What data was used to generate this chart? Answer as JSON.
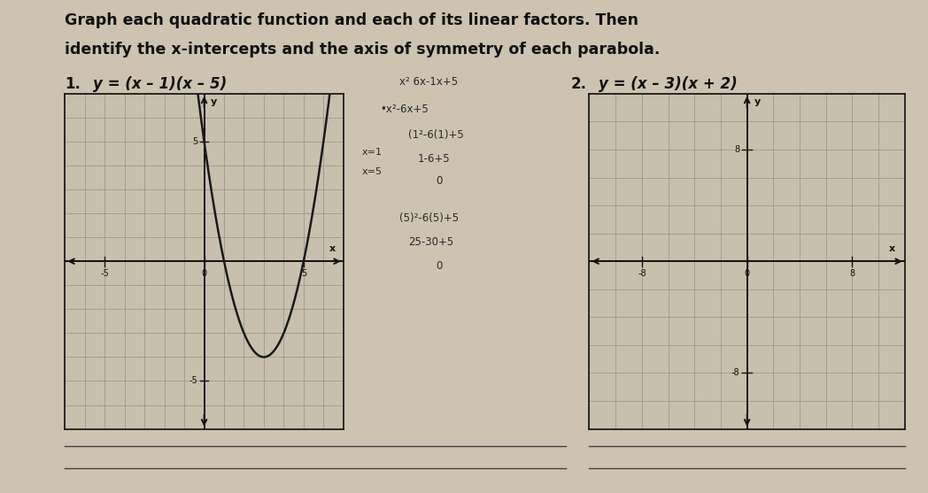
{
  "bg_color": "#cdc3b0",
  "graph1_bg": "#c8bfad",
  "graph2_bg": "#c8bfad",
  "title_line1": "Graph each quadratic function and each of its linear factors. Then",
  "title_line2": "identify the x-intercepts and the axis of symmetry of each parabola.",
  "problem1_num": "1.",
  "problem1_eq": "y = (x – 1)(x – 5)",
  "problem2_num": "2.",
  "problem2_eq": "y = (x – 3)(x + 2)",
  "graph1_xlim": [
    -7,
    7
  ],
  "graph1_ylim": [
    -7,
    7
  ],
  "graph2_xlim": [
    -12,
    12
  ],
  "graph2_ylim": [
    -12,
    12
  ],
  "curve_color": "#1a1a1a",
  "grid_color": "#888877",
  "axis_color": "#111111",
  "notes": [
    "x² 6x-1x+5",
    "•x²-6x+5",
    "(1²-6(1)+5",
    "1-6+5",
    "0",
    "(5)²-6(5)+5",
    "25-30+5",
    "0"
  ],
  "side_note1": "x=1",
  "side_note2": "x=5",
  "line_color": "#444444"
}
